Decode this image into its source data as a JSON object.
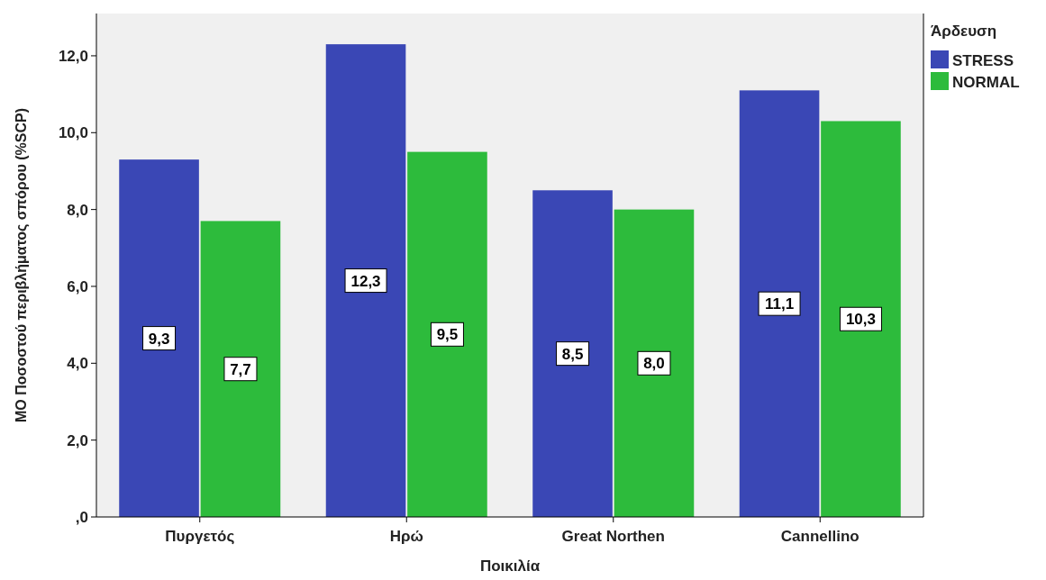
{
  "chart_data": {
    "type": "bar",
    "xlabel": "Ποικιλία",
    "ylabel": "ΜΟ Ποσοστού περιβλήματος σπόρου (%SCP)",
    "legend_title": "Άρδευση",
    "categories": [
      "Πυργετός",
      "Ηρώ",
      "Great Northen",
      "Cannellino"
    ],
    "series": [
      {
        "name": "STRESS",
        "color": "#3a47b5",
        "values": [
          9.3,
          12.3,
          8.5,
          11.1
        ],
        "value_labels": [
          "9,3",
          "12,3",
          "8,5",
          "11,1"
        ]
      },
      {
        "name": "NORMAL",
        "color": "#2dbb3c",
        "values": [
          7.7,
          9.5,
          8.0,
          10.3
        ],
        "value_labels": [
          "7,7",
          "9,5",
          "8,0",
          "10,3"
        ]
      }
    ],
    "ylim": [
      0,
      13.1
    ],
    "yticks": [
      {
        "value": 0,
        "label": ",0"
      },
      {
        "value": 2,
        "label": "2,0"
      },
      {
        "value": 4,
        "label": "4,0"
      },
      {
        "value": 6,
        "label": "6,0"
      },
      {
        "value": 8,
        "label": "8,0"
      },
      {
        "value": 10,
        "label": "10,0"
      },
      {
        "value": 12,
        "label": "12,0"
      }
    ],
    "legend": "top right",
    "grid": false
  }
}
